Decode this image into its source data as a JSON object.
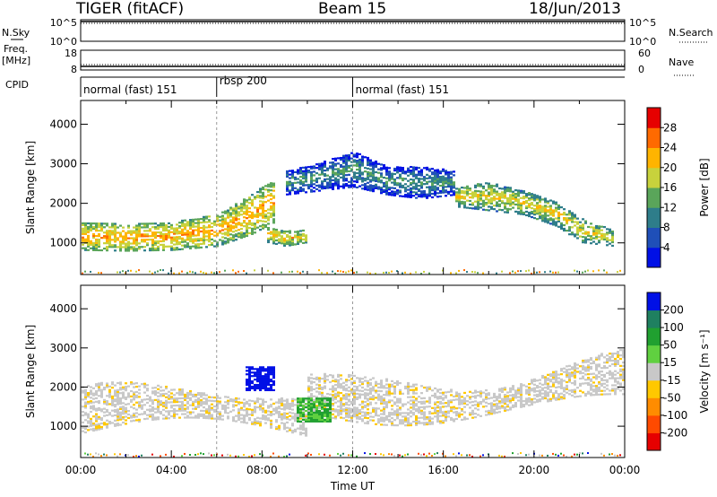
{
  "header": {
    "station": "TIGER (fitACF)",
    "beam": "Beam 15",
    "date": "18/Jun/2013"
  },
  "strips": {
    "nsky_label": "N.Sky",
    "nsky_top": "10^5",
    "nsky_bottom": "10^0",
    "nsearch_label": "N.Search",
    "nsearch_top": "10^5",
    "nsearch_bottom": "10^0",
    "freq_label": "Freq.",
    "freq_unit": "[MHz]",
    "freq_top": "18",
    "freq_bottom": "8",
    "nave_label": "Nave",
    "nave_top": "60",
    "nave_bottom": "0",
    "cpid_label": "CPID"
  },
  "cpid_segments": [
    {
      "label": "normal (fast) 151",
      "start_hour": 0,
      "end_hour": 6
    },
    {
      "label": "rbsp 200",
      "start_hour": 6,
      "end_hour": 12
    },
    {
      "label": "normal (fast) 151",
      "start_hour": 12,
      "end_hour": 24
    }
  ],
  "chart_data": [
    {
      "type": "heatmap",
      "title": "",
      "xlabel": "Time UT",
      "ylabel": "Slant Range [km]",
      "xlim": [
        0,
        24
      ],
      "ylim": [
        200,
        4600
      ],
      "y_ticks": [
        "1000",
        "2000",
        "3000",
        "4000"
      ],
      "x_ticks": [
        "00:00",
        "04:00",
        "08:00",
        "12:00",
        "16:00",
        "20:00",
        "00:00"
      ],
      "colorbar_label": "Power [dB]",
      "colorbar_ticks": [
        "4",
        "8",
        "12",
        "16",
        "20",
        "24",
        "28"
      ],
      "colorbar_range": [
        0,
        30
      ],
      "colors": [
        "#0010e6",
        "#1f4fb8",
        "#2e7d8a",
        "#5aa55a",
        "#c8d23c",
        "#ffb400",
        "#ff6a00",
        "#e60000"
      ],
      "bands": [
        {
          "t": [
            0,
            2,
            4,
            6,
            7.5,
            8.5
          ],
          "r_lo": [
            800,
            780,
            800,
            900,
            1200,
            1500
          ],
          "r_hi": [
            1500,
            1450,
            1500,
            1700,
            2200,
            2600
          ],
          "level": 22
        },
        {
          "t": [
            9,
            10.5,
            12,
            13.5,
            15,
            16.5
          ],
          "r_lo": [
            2200,
            2300,
            2400,
            2200,
            2100,
            2200
          ],
          "r_hi": [
            2800,
            3000,
            3300,
            2900,
            2900,
            2800
          ],
          "level": 12
        },
        {
          "t": [
            16.5,
            18,
            19.5,
            21,
            22,
            23.5
          ],
          "r_lo": [
            1900,
            1800,
            1700,
            1400,
            1000,
            900
          ],
          "r_hi": [
            2400,
            2500,
            2300,
            2000,
            1600,
            1300
          ],
          "level": 19
        },
        {
          "t": [
            8.2,
            9,
            10
          ],
          "r_lo": [
            1000,
            900,
            1000
          ],
          "r_hi": [
            1400,
            1300,
            1300
          ],
          "level": 20
        }
      ]
    },
    {
      "type": "heatmap",
      "title": "",
      "xlabel": "Time UT",
      "ylabel": "Slant Range [km]",
      "xlim": [
        0,
        24
      ],
      "ylim": [
        200,
        4600
      ],
      "y_ticks": [
        "1000",
        "2000",
        "3000",
        "4000"
      ],
      "x_ticks": [
        "00:00",
        "04:00",
        "08:00",
        "12:00",
        "16:00",
        "20:00",
        "00:00"
      ],
      "colorbar_label": "Velocity [m s⁻¹]",
      "colorbar_ticks": [
        "-200",
        "-100",
        "-50",
        "-15",
        "15",
        "50",
        "100",
        "200"
      ],
      "colorbar_range": [
        -250,
        250
      ],
      "colors": [
        "#e60000",
        "#ff4a00",
        "#ff8c00",
        "#ffc800",
        "#c8c8c8",
        "#60d040",
        "#20a030",
        "#1f8060",
        "#0010e6"
      ],
      "features": [
        {
          "name": "ground scatter (grey)",
          "t_range": [
            0,
            24
          ],
          "r_range": [
            800,
            2600
          ]
        },
        {
          "name": "blue patch",
          "t_range": [
            7.2,
            8.5
          ],
          "r_range": [
            1900,
            2500
          ]
        },
        {
          "name": "green patch",
          "t_range": [
            9.5,
            11
          ],
          "r_range": [
            1100,
            1700
          ]
        }
      ]
    }
  ]
}
